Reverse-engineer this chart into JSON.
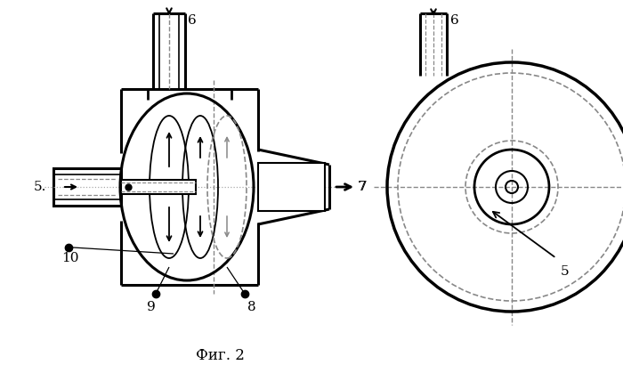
{
  "fig_label": "Фиг. 2",
  "bg_color": "#ffffff",
  "line_color": "#000000",
  "dashed_color": "#888888",
  "figsize": [
    7.0,
    4.19
  ],
  "dpi": 100
}
